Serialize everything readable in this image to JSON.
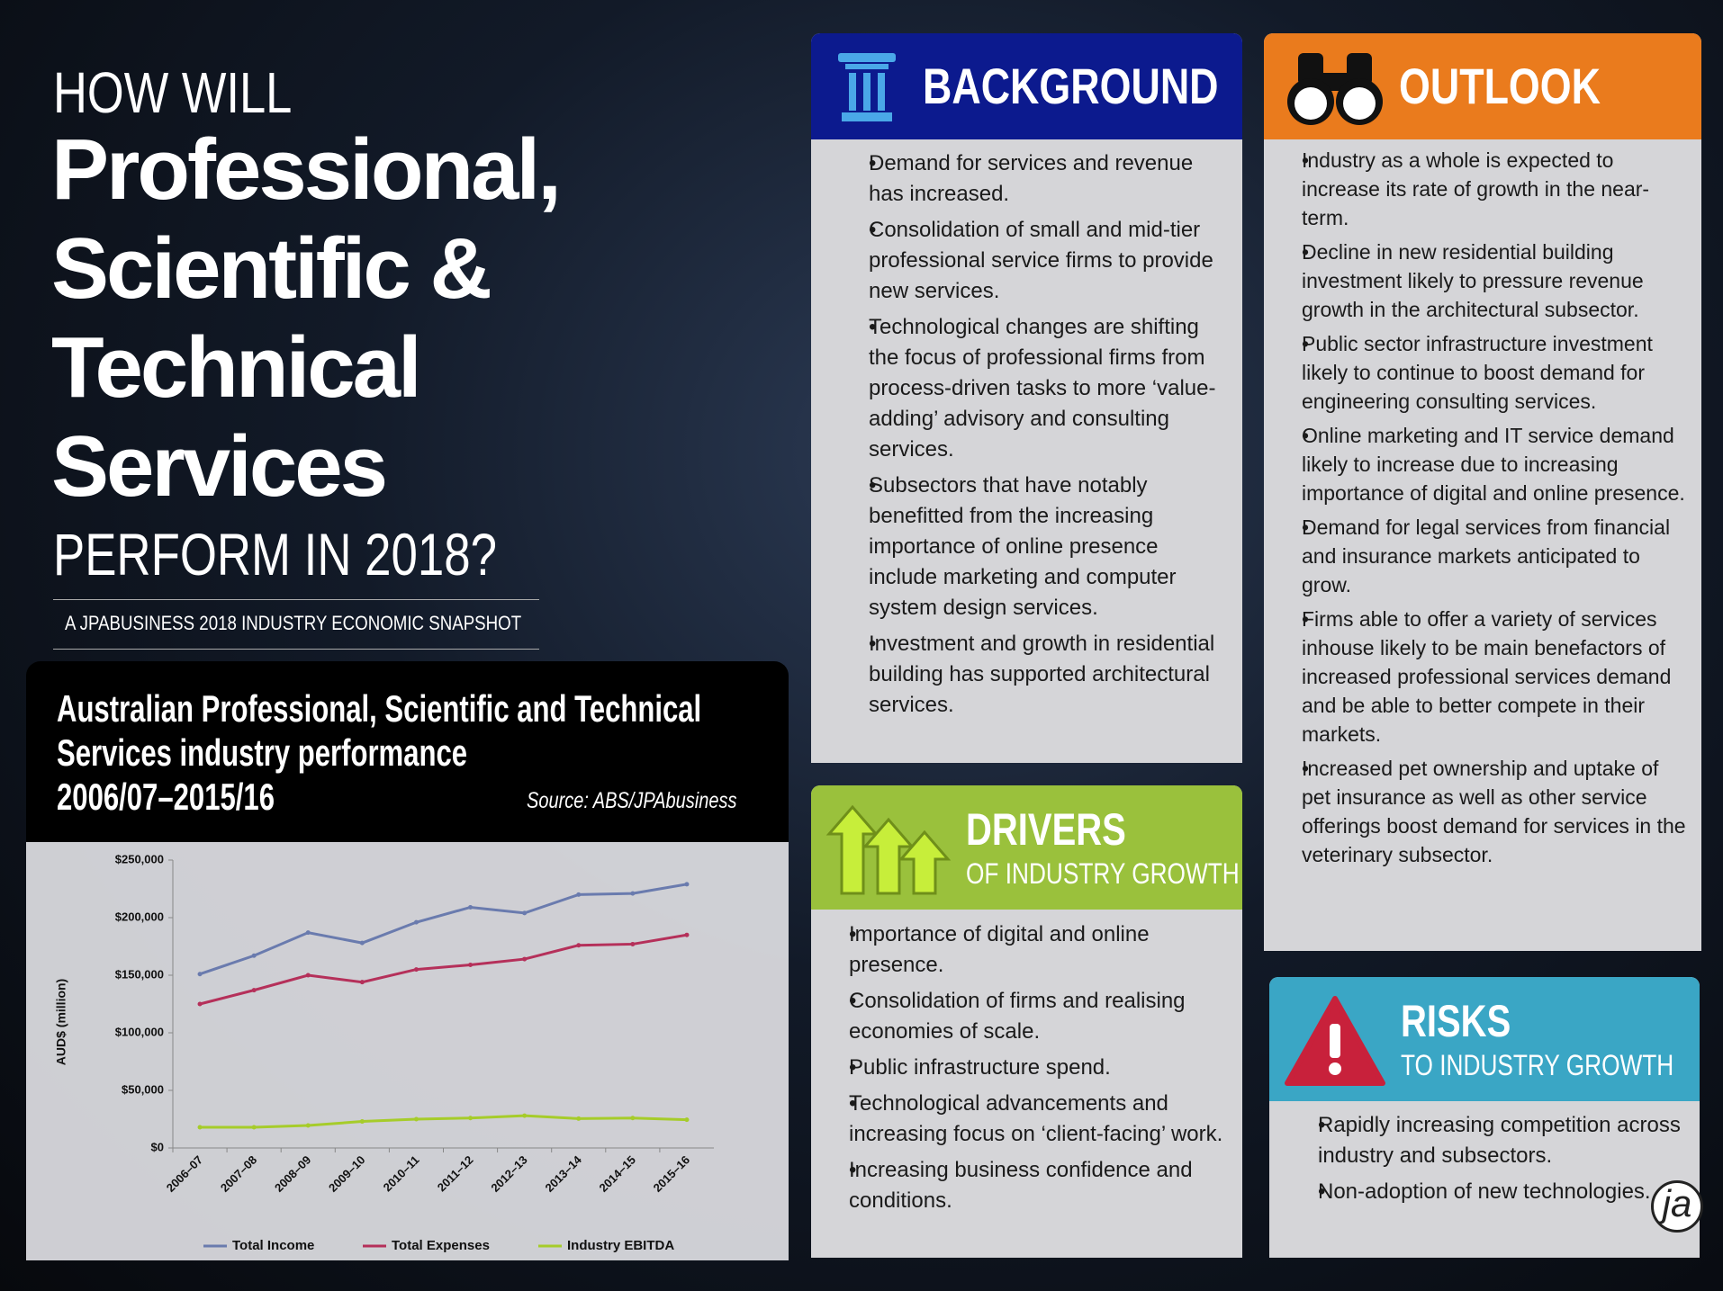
{
  "header": {
    "lines": [
      "HOW WILL",
      "Professional,",
      "Scientific &",
      "Technical",
      "Services",
      "PERFORM IN 2018?"
    ],
    "subtitle": "A JPABUSINESS 2018 INDUSTRY ECONOMIC SNAPSHOT"
  },
  "background": {
    "title": "BACKGROUND",
    "items": [
      "Demand for services and revenue has increased.",
      "Consolidation of small and mid-tier professional service firms to provide new services.",
      "Technological changes are shifting the focus of professional firms from process-driven tasks to more ‘value-adding’ advisory and consulting services.",
      "Subsectors that have notably benefitted from the increasing importance of online presence include marketing and computer system design services.",
      "Investment and growth in residential building has supported architectural services."
    ]
  },
  "outlook": {
    "title": "OUTLOOK",
    "items": [
      "Industry as a whole is expected to increase its rate of growth in the near-term.",
      "Decline in new residential building investment likely to pressure revenue growth in the architectural subsector.",
      "Public sector infrastructure investment likely to continue to boost demand for engineering consulting services.",
      "Online marketing and IT service demand likely to increase due to increasing importance of digital and online presence.",
      "Demand for legal services from financial and insurance markets anticipated to grow.",
      "Firms able to offer a variety of services inhouse likely to be main benefactors of increased professional services demand and be able to better compete in their markets.",
      "Increased pet ownership and uptake of pet insurance as well as other service offerings boost demand for services in the veterinary subsector."
    ]
  },
  "drivers": {
    "title": "DRIVERS",
    "subtitle": "OF INDUSTRY GROWTH",
    "items": [
      "Importance of digital and online presence.",
      "Consolidation of firms and realising economies of scale.",
      "Public infrastructure spend.",
      "Technological advancements and increasing focus on ‘client-facing’ work.",
      "Increasing business confidence and conditions."
    ]
  },
  "risks": {
    "title": "RISKS",
    "subtitle": "TO INDUSTRY GROWTH",
    "items": [
      "Rapidly increasing competition across industry and subsectors.",
      "Non-adoption of new technologies."
    ]
  },
  "logo": "ja",
  "chart_data": {
    "type": "line",
    "title": [
      "Australian Professional, Scientific and Technical",
      "Services industry performance",
      "2006/07–2015/16"
    ],
    "source": "Source: ABS/JPAbusiness",
    "ylabel": "AUD$ (million)",
    "categories": [
      "2006–07",
      "2007–08",
      "2008–09",
      "2009–10",
      "2010–11",
      "2011–12",
      "2012–13",
      "2013–14",
      "2014–15",
      "2015–16"
    ],
    "series": [
      {
        "name": "Total Income",
        "color": "#6a7bae",
        "values": [
          151000,
          167000,
          187000,
          178000,
          196000,
          209000,
          204000,
          220000,
          221000,
          229000
        ]
      },
      {
        "name": "Total Expenses",
        "color": "#b5305a",
        "values": [
          125000,
          137000,
          150000,
          144000,
          155000,
          159000,
          164000,
          176000,
          177000,
          185000
        ]
      },
      {
        "name": "Industry EBITDA",
        "color": "#a6cc2a",
        "values": [
          18000,
          18000,
          19500,
          23000,
          25000,
          26000,
          28000,
          25500,
          26000,
          24500
        ]
      }
    ],
    "ylim": [
      0,
      250000
    ],
    "yticks": [
      {
        "value": 0,
        "label": "$0"
      },
      {
        "value": 50000,
        "label": "$50,000"
      },
      {
        "value": 100000,
        "label": "$100,000"
      },
      {
        "value": 150000,
        "label": "$150,000"
      },
      {
        "value": 200000,
        "label": "$200,000"
      },
      {
        "value": 250000,
        "label": "$250,000"
      }
    ],
    "legend": "bottom"
  }
}
